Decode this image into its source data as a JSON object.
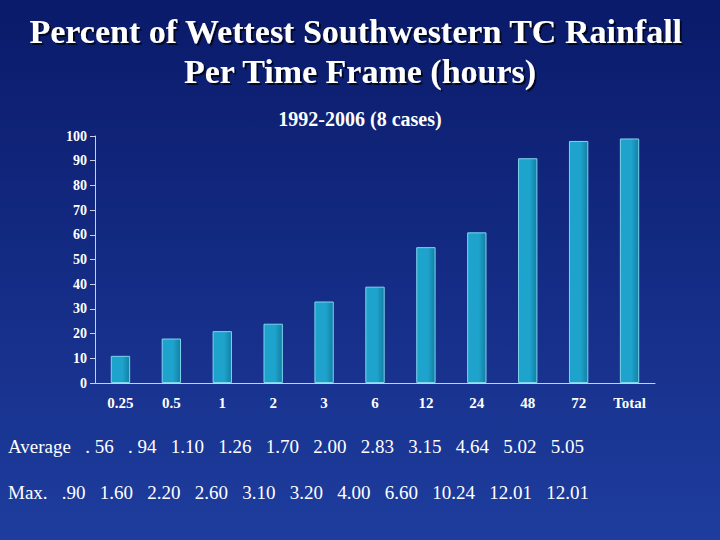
{
  "chart_data": {
    "type": "bar",
    "title": "Percent of Wettest Southwestern TC Rainfall Per Time Frame (hours)",
    "subtitle": "1992-2006 (8 cases)",
    "categories": [
      "0.25",
      "0.5",
      "1",
      "2",
      "3",
      "6",
      "12",
      "24",
      "48",
      "72",
      "Total"
    ],
    "values": [
      11,
      18,
      21,
      24,
      33,
      39,
      55,
      61,
      91,
      98,
      99
    ],
    "color": "#1ea3cc",
    "ylim": [
      0,
      100
    ],
    "yticks": [
      0,
      10,
      20,
      30,
      40,
      50,
      60,
      70,
      80,
      90,
      100
    ],
    "grid": false,
    "annotations": [
      {
        "label": "Average",
        "values": [
          ". 56",
          ". 94",
          "1.10",
          "1.26",
          "1.70",
          "2.00",
          "2.83",
          "3.15",
          "4.64",
          "5.02",
          "5.05"
        ]
      },
      {
        "label": "Max.",
        "values": [
          ".90",
          "1.60",
          "2.20",
          "2.60",
          "3.10",
          "3.20",
          "4.00",
          "6.60",
          "10.24",
          "12.01",
          "12.01"
        ]
      }
    ]
  }
}
